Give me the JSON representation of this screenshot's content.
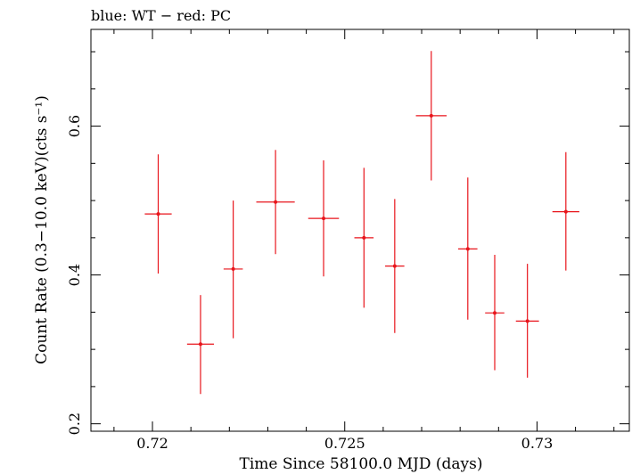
{
  "chart_data": {
    "type": "scatter",
    "title": "blue: WT − red: PC",
    "xlabel": "Time Since 58100.0 MJD (days)",
    "ylabel": "Count Rate (0.3−10.0 keV)(cts s⁻¹)",
    "xlim": [
      0.7184,
      0.7324
    ],
    "ylim": [
      0.19,
      0.73
    ],
    "x_ticks": [
      0.72,
      0.725,
      0.73
    ],
    "x_tick_labels": [
      "0.72",
      "0.725",
      "0.73"
    ],
    "y_ticks": [
      0.2,
      0.4,
      0.6
    ],
    "y_tick_labels": [
      "0.2",
      "0.4",
      "0.6"
    ],
    "grid": false,
    "series": [
      {
        "color": "#e8141b",
        "points": [
          {
            "x": 0.72015,
            "y": 0.482,
            "xerr": 0.00035,
            "yerr_low": 0.08,
            "yerr_high": 0.08
          },
          {
            "x": 0.72125,
            "y": 0.307,
            "xerr": 0.00035,
            "yerr_low": 0.067,
            "yerr_high": 0.066
          },
          {
            "x": 0.7221,
            "y": 0.408,
            "xerr": 0.00025,
            "yerr_low": 0.093,
            "yerr_high": 0.092
          },
          {
            "x": 0.7232,
            "y": 0.498,
            "xerr": 0.0005,
            "yerr_low": 0.07,
            "yerr_high": 0.07
          },
          {
            "x": 0.72445,
            "y": 0.476,
            "xerr": 0.0004,
            "yerr_low": 0.078,
            "yerr_high": 0.078
          },
          {
            "x": 0.7255,
            "y": 0.45,
            "xerr": 0.00025,
            "yerr_low": 0.094,
            "yerr_high": 0.094
          },
          {
            "x": 0.7263,
            "y": 0.412,
            "xerr": 0.00025,
            "yerr_low": 0.09,
            "yerr_high": 0.09
          },
          {
            "x": 0.72725,
            "y": 0.614,
            "xerr": 0.0004,
            "yerr_low": 0.087,
            "yerr_high": 0.087
          },
          {
            "x": 0.7282,
            "y": 0.435,
            "xerr": 0.00025,
            "yerr_low": 0.095,
            "yerr_high": 0.096
          },
          {
            "x": 0.7289,
            "y": 0.349,
            "xerr": 0.00025,
            "yerr_low": 0.077,
            "yerr_high": 0.078
          },
          {
            "x": 0.72975,
            "y": 0.338,
            "xerr": 0.0003,
            "yerr_low": 0.076,
            "yerr_high": 0.077
          },
          {
            "x": 0.73075,
            "y": 0.485,
            "xerr": 0.00035,
            "yerr_low": 0.079,
            "yerr_high": 0.08
          }
        ]
      }
    ]
  }
}
